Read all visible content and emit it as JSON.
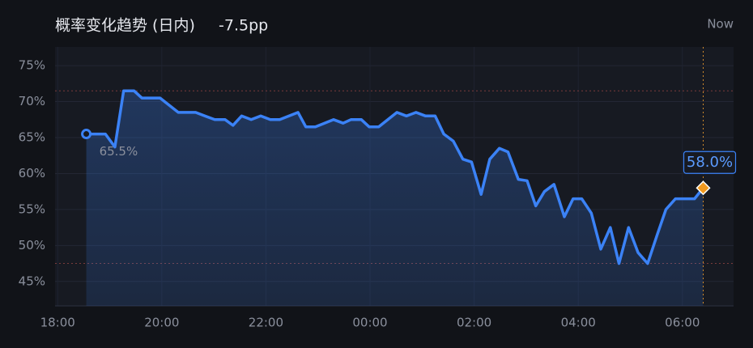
{
  "chart_data": {
    "type": "line",
    "title": "概率变化趋势 (日内)",
    "change": "-7.5pp",
    "now_label": "Now",
    "x": [
      "18:33",
      "18:41",
      "18:55",
      "19:06",
      "19:16",
      "19:28",
      "19:37",
      "19:58",
      "20:19",
      "20:39",
      "21:01",
      "21:13",
      "21:22",
      "21:32",
      "21:43",
      "21:54",
      "22:05",
      "22:16",
      "22:37",
      "22:46",
      "22:57",
      "23:18",
      "23:29",
      "23:38",
      "23:50",
      "23:59",
      "00:10",
      "00:31",
      "00:42",
      "00:53",
      "01:04",
      "01:15",
      "01:25",
      "01:36",
      "01:47",
      "01:57",
      "02:08",
      "02:18",
      "02:29",
      "02:39",
      "02:51",
      "03:01",
      "03:11",
      "03:21",
      "03:32",
      "03:44",
      "03:54",
      "04:04",
      "04:15",
      "04:26",
      "04:37",
      "04:47",
      "04:58",
      "05:09",
      "05:20",
      "05:31",
      "05:41",
      "05:52",
      "06:03",
      "06:14",
      "06:24"
    ],
    "series": [
      {
        "color": "#3b82f6",
        "values": [
          65.5,
          65.5,
          65.5,
          63.7,
          71.5,
          71.5,
          70.5,
          70.5,
          68.5,
          68.5,
          67.5,
          67.5,
          66.7,
          68.0,
          67.5,
          68.0,
          67.5,
          67.5,
          68.5,
          66.5,
          66.5,
          67.5,
          67.0,
          67.5,
          67.5,
          66.5,
          66.5,
          68.5,
          68.0,
          68.5,
          68.0,
          68.0,
          65.5,
          64.5,
          62.0,
          61.6,
          57.1,
          62.0,
          63.5,
          63.0,
          59.2,
          59.0,
          55.5,
          57.5,
          58.5,
          54.0,
          56.5,
          56.5,
          54.5,
          49.5,
          52.5,
          47.5,
          52.5,
          49.0,
          47.5,
          51.5,
          55.0,
          56.5,
          56.5,
          56.5,
          58.0
        ]
      }
    ],
    "annotations": [
      {
        "x": "18:33",
        "value": 65.5,
        "label": "65.5%"
      },
      {
        "x": "06:24",
        "value": 58.0,
        "label": "58.0%"
      }
    ],
    "reference_lines": [
      71.5,
      47.5
    ],
    "now": "06:24",
    "xlim": [
      "17:57",
      "06:59"
    ],
    "xticks": [
      "18:00",
      "20:00",
      "22:00",
      "00:00",
      "02:00",
      "04:00",
      "06:00"
    ],
    "ylim": [
      41.6,
      77.6
    ],
    "yticks": [
      {
        "value": 45,
        "label": "45%"
      },
      {
        "value": 50,
        "label": "50%"
      },
      {
        "value": 55,
        "label": "55%"
      },
      {
        "value": 60,
        "label": "60%"
      },
      {
        "value": 65,
        "label": "65%"
      },
      {
        "value": 70,
        "label": "70%"
      },
      {
        "value": 75,
        "label": "75%"
      }
    ],
    "grid": true
  }
}
